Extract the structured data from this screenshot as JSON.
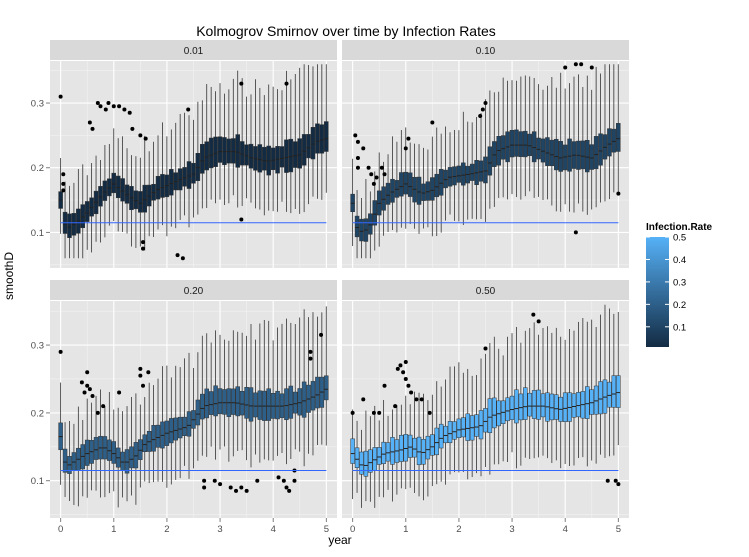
{
  "chart_data": {
    "type": "box",
    "title": "Kolmogrov Smirnov over time by Infection Rates",
    "xlabel": "year",
    "ylabel": "smoothD",
    "xlim": [
      -0.2,
      5.2
    ],
    "ylim": [
      0.045,
      0.365
    ],
    "x_ticks": [
      0,
      1,
      2,
      3,
      4,
      5
    ],
    "y_ticks": [
      0.1,
      0.2,
      0.3
    ],
    "y_tick_labels": [
      "0.1",
      "0.2",
      "0.3"
    ],
    "grid": true,
    "facet_variable": "Infection.Rate",
    "legend": {
      "title": "Infection.Rate",
      "placement": "right",
      "type": "colorbar",
      "range": [
        0.01,
        0.5
      ],
      "ticks": [
        "0.1",
        "0.2",
        "0.3",
        "0.4",
        "0.5"
      ],
      "low_color": "#132B43",
      "high_color": "#56B1F7"
    },
    "reference_line": {
      "y": 0.115,
      "color": "#3366FF"
    },
    "box_step_years": 0.0833,
    "panels": [
      {
        "label": "0.01",
        "rate": 0.01,
        "median_knots": [
          [
            0,
            0.15
          ],
          [
            0.1,
            0.105
          ],
          [
            0.3,
            0.115
          ],
          [
            0.5,
            0.13
          ],
          [
            0.8,
            0.16
          ],
          [
            1.0,
            0.175
          ],
          [
            1.3,
            0.155
          ],
          [
            1.5,
            0.145
          ],
          [
            1.8,
            0.165
          ],
          [
            2.2,
            0.18
          ],
          [
            2.5,
            0.19
          ],
          [
            2.7,
            0.215
          ],
          [
            3.0,
            0.225
          ],
          [
            3.3,
            0.225
          ],
          [
            3.6,
            0.215
          ],
          [
            3.9,
            0.21
          ],
          [
            4.2,
            0.215
          ],
          [
            4.5,
            0.22
          ],
          [
            4.8,
            0.24
          ],
          [
            5.0,
            0.245
          ]
        ],
        "outlier_points": [
          [
            0,
            0.31
          ],
          [
            0.05,
            0.19
          ],
          [
            0.05,
            0.175
          ],
          [
            0.05,
            0.165
          ],
          [
            0.55,
            0.27
          ],
          [
            0.6,
            0.26
          ],
          [
            0.7,
            0.3
          ],
          [
            0.75,
            0.295
          ],
          [
            0.85,
            0.29
          ],
          [
            0.9,
            0.3
          ],
          [
            1.0,
            0.295
          ],
          [
            1.1,
            0.295
          ],
          [
            1.2,
            0.29
          ],
          [
            1.3,
            0.285
          ],
          [
            1.35,
            0.26
          ],
          [
            1.5,
            0.25
          ],
          [
            1.6,
            0.245
          ],
          [
            1.55,
            0.085
          ],
          [
            1.55,
            0.075
          ],
          [
            2.2,
            0.065
          ],
          [
            2.3,
            0.06
          ],
          [
            2.4,
            0.29
          ],
          [
            3.4,
            0.33
          ],
          [
            3.4,
            0.12
          ],
          [
            4.25,
            0.33
          ]
        ]
      },
      {
        "label": "0.10",
        "rate": 0.1,
        "median_knots": [
          [
            0,
            0.145
          ],
          [
            0.1,
            0.1
          ],
          [
            0.3,
            0.105
          ],
          [
            0.5,
            0.145
          ],
          [
            0.7,
            0.16
          ],
          [
            1.0,
            0.175
          ],
          [
            1.3,
            0.16
          ],
          [
            1.5,
            0.165
          ],
          [
            1.8,
            0.185
          ],
          [
            2.2,
            0.19
          ],
          [
            2.5,
            0.195
          ],
          [
            2.7,
            0.225
          ],
          [
            3.0,
            0.235
          ],
          [
            3.3,
            0.235
          ],
          [
            3.6,
            0.225
          ],
          [
            3.9,
            0.215
          ],
          [
            4.2,
            0.22
          ],
          [
            4.5,
            0.215
          ],
          [
            4.8,
            0.235
          ],
          [
            5.0,
            0.245
          ]
        ],
        "outlier_points": [
          [
            0.05,
            0.25
          ],
          [
            0.1,
            0.24
          ],
          [
            0.1,
            0.215
          ],
          [
            0.1,
            0.2
          ],
          [
            0.2,
            0.23
          ],
          [
            0.3,
            0.2
          ],
          [
            0.35,
            0.19
          ],
          [
            0.4,
            0.175
          ],
          [
            0.45,
            0.185
          ],
          [
            0.55,
            0.2
          ],
          [
            0.6,
            0.19
          ],
          [
            1.0,
            0.23
          ],
          [
            1.05,
            0.245
          ],
          [
            1.5,
            0.27
          ],
          [
            2.4,
            0.28
          ],
          [
            2.5,
            0.3
          ],
          [
            2.45,
            0.29
          ],
          [
            4.0,
            0.355
          ],
          [
            4.2,
            0.36
          ],
          [
            4.3,
            0.36
          ],
          [
            4.5,
            0.355
          ],
          [
            4.2,
            0.1
          ],
          [
            5.0,
            0.16
          ]
        ]
      },
      {
        "label": "0.20",
        "rate": 0.2,
        "median_knots": [
          [
            0,
            0.165
          ],
          [
            0.1,
            0.12
          ],
          [
            0.3,
            0.13
          ],
          [
            0.5,
            0.14
          ],
          [
            0.8,
            0.15
          ],
          [
            1.0,
            0.14
          ],
          [
            1.2,
            0.125
          ],
          [
            1.4,
            0.135
          ],
          [
            1.6,
            0.155
          ],
          [
            2.0,
            0.17
          ],
          [
            2.4,
            0.18
          ],
          [
            2.7,
            0.21
          ],
          [
            3.0,
            0.215
          ],
          [
            3.3,
            0.215
          ],
          [
            3.6,
            0.21
          ],
          [
            3.9,
            0.21
          ],
          [
            4.2,
            0.21
          ],
          [
            4.5,
            0.215
          ],
          [
            4.8,
            0.225
          ],
          [
            5.0,
            0.235
          ]
        ],
        "outlier_points": [
          [
            0,
            0.29
          ],
          [
            0.4,
            0.245
          ],
          [
            0.45,
            0.23
          ],
          [
            0.5,
            0.26
          ],
          [
            0.5,
            0.24
          ],
          [
            0.55,
            0.235
          ],
          [
            0.6,
            0.225
          ],
          [
            0.7,
            0.2
          ],
          [
            0.8,
            0.21
          ],
          [
            1.1,
            0.23
          ],
          [
            1.5,
            0.265
          ],
          [
            1.5,
            0.255
          ],
          [
            1.55,
            0.24
          ],
          [
            1.65,
            0.26
          ],
          [
            2.7,
            0.1
          ],
          [
            2.7,
            0.09
          ],
          [
            2.9,
            0.1
          ],
          [
            3.0,
            0.095
          ],
          [
            3.2,
            0.09
          ],
          [
            3.3,
            0.085
          ],
          [
            3.4,
            0.09
          ],
          [
            3.5,
            0.085
          ],
          [
            3.7,
            0.1
          ],
          [
            4.1,
            0.105
          ],
          [
            4.2,
            0.1
          ],
          [
            4.25,
            0.09
          ],
          [
            4.3,
            0.085
          ],
          [
            4.4,
            0.1
          ],
          [
            4.4,
            0.115
          ],
          [
            4.7,
            0.28
          ],
          [
            4.7,
            0.29
          ],
          [
            4.9,
            0.315
          ]
        ]
      },
      {
        "label": "0.50",
        "rate": 0.5,
        "median_knots": [
          [
            0,
            0.14
          ],
          [
            0.1,
            0.13
          ],
          [
            0.2,
            0.12
          ],
          [
            0.4,
            0.13
          ],
          [
            0.6,
            0.14
          ],
          [
            0.9,
            0.145
          ],
          [
            1.1,
            0.15
          ],
          [
            1.3,
            0.14
          ],
          [
            1.5,
            0.15
          ],
          [
            1.7,
            0.165
          ],
          [
            2.0,
            0.175
          ],
          [
            2.4,
            0.18
          ],
          [
            2.6,
            0.195
          ],
          [
            3.0,
            0.205
          ],
          [
            3.3,
            0.21
          ],
          [
            3.6,
            0.21
          ],
          [
            3.9,
            0.205
          ],
          [
            4.2,
            0.21
          ],
          [
            4.5,
            0.215
          ],
          [
            4.8,
            0.225
          ],
          [
            5.0,
            0.23
          ]
        ],
        "outlier_points": [
          [
            0,
            0.2
          ],
          [
            0.2,
            0.22
          ],
          [
            0.4,
            0.2
          ],
          [
            0.5,
            0.2
          ],
          [
            0.6,
            0.24
          ],
          [
            0.8,
            0.21
          ],
          [
            0.85,
            0.265
          ],
          [
            0.9,
            0.27
          ],
          [
            0.95,
            0.26
          ],
          [
            1.0,
            0.25
          ],
          [
            1.05,
            0.24
          ],
          [
            1.1,
            0.23
          ],
          [
            1.2,
            0.22
          ],
          [
            1.3,
            0.22
          ],
          [
            1.45,
            0.2
          ],
          [
            1.0,
            0.275
          ],
          [
            2.5,
            0.295
          ],
          [
            3.4,
            0.345
          ],
          [
            3.5,
            0.335
          ],
          [
            4.95,
            0.1
          ],
          [
            5.0,
            0.095
          ],
          [
            4.8,
            0.1
          ]
        ]
      }
    ]
  }
}
